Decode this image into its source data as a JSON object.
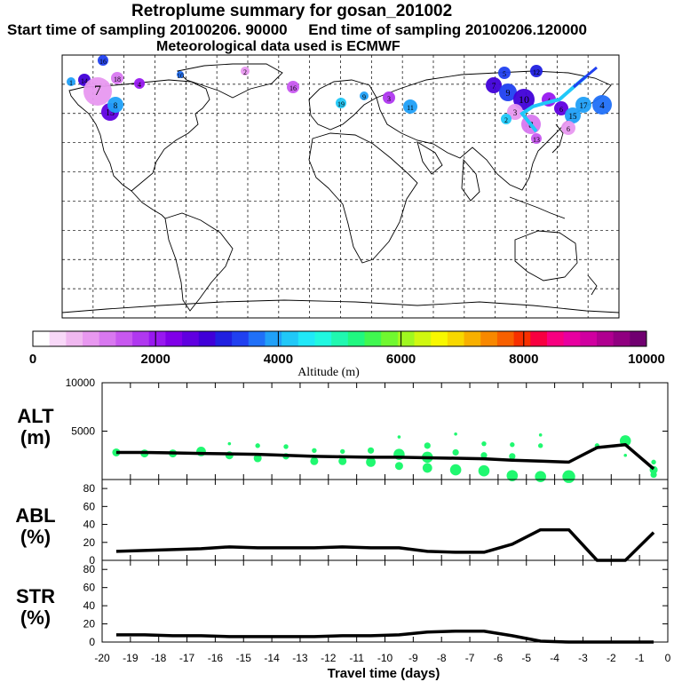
{
  "header": {
    "title": "Retroplume summary for gosan_201002",
    "sampling_line": "Start time of sampling 20100206. 90000     End time of sampling 20100206.120000",
    "met_line": "Meteorological data used is ECMWF"
  },
  "colorbar": {
    "title": "Altitude (m)",
    "tick_labels": [
      "0",
      "2000",
      "4000",
      "6000",
      "8000",
      "10000"
    ],
    "colors": [
      "#ffffff",
      "#f8d8f8",
      "#f0b8f0",
      "#e898f0",
      "#d878f0",
      "#c858f0",
      "#b038f0",
      "#9818f0",
      "#8000e8",
      "#6000e0",
      "#4000d8",
      "#2020e0",
      "#2040f0",
      "#2070f8",
      "#20a0f8",
      "#20c8f8",
      "#20e8f8",
      "#20f8e0",
      "#20f8b0",
      "#20f880",
      "#40f850",
      "#70f830",
      "#a0f820",
      "#d0f810",
      "#f8f800",
      "#f8d800",
      "#f8b000",
      "#f88800",
      "#f86000",
      "#f83000",
      "#f80040",
      "#f80080",
      "#e800a0",
      "#d000a0",
      "#b00090",
      "#900080",
      "#700070"
    ]
  },
  "chart_data": [
    {
      "type": "line",
      "panel": "ALT",
      "ylabel": "ALT\n(m)",
      "ylabel_lines": [
        "ALT",
        "(m)"
      ],
      "ylim": [
        0,
        10000
      ],
      "yticks": [
        5000,
        10000
      ],
      "ytick_labels": [
        "5000",
        "10000"
      ],
      "xlim": [
        -20,
        0
      ],
      "x": [
        -19.5,
        -18.5,
        -17.5,
        -16.5,
        -15.5,
        -14.5,
        -13.5,
        -12.5,
        -11.5,
        -10.5,
        -9.5,
        -8.5,
        -7.5,
        -6.5,
        -5.5,
        -4.5,
        -3.5,
        -2.5,
        -1.5,
        -0.5
      ],
      "values": [
        2800,
        2800,
        2750,
        2700,
        2650,
        2600,
        2500,
        2400,
        2350,
        2300,
        2300,
        2250,
        2200,
        2150,
        2000,
        1900,
        1800,
        3300,
        3600,
        1100
      ],
      "scatter": [
        {
          "x": -19.5,
          "y": 2800,
          "s": 5
        },
        {
          "x": -18.5,
          "y": 2700,
          "s": 5
        },
        {
          "x": -17.5,
          "y": 2700,
          "s": 5
        },
        {
          "x": -16.5,
          "y": 2900,
          "s": 6
        },
        {
          "x": -15.5,
          "y": 3700,
          "s": 2
        },
        {
          "x": -15.5,
          "y": 2500,
          "s": 5
        },
        {
          "x": -14.5,
          "y": 3500,
          "s": 3
        },
        {
          "x": -14.5,
          "y": 2200,
          "s": 5
        },
        {
          "x": -13.5,
          "y": 3400,
          "s": 3
        },
        {
          "x": -13.5,
          "y": 2400,
          "s": 4
        },
        {
          "x": -12.5,
          "y": 3000,
          "s": 3
        },
        {
          "x": -12.5,
          "y": 1900,
          "s": 5
        },
        {
          "x": -11.5,
          "y": 2900,
          "s": 3
        },
        {
          "x": -11.5,
          "y": 1900,
          "s": 5
        },
        {
          "x": -10.5,
          "y": 3000,
          "s": 4
        },
        {
          "x": -10.5,
          "y": 1800,
          "s": 6
        },
        {
          "x": -9.5,
          "y": 4400,
          "s": 2
        },
        {
          "x": -9.5,
          "y": 2600,
          "s": 7
        },
        {
          "x": -9.5,
          "y": 1400,
          "s": 5
        },
        {
          "x": -8.5,
          "y": 3500,
          "s": 4
        },
        {
          "x": -8.5,
          "y": 2300,
          "s": 7
        },
        {
          "x": -8.5,
          "y": 1200,
          "s": 6
        },
        {
          "x": -7.5,
          "y": 4700,
          "s": 2
        },
        {
          "x": -7.5,
          "y": 2800,
          "s": 4
        },
        {
          "x": -7.5,
          "y": 1000,
          "s": 7
        },
        {
          "x": -6.5,
          "y": 3700,
          "s": 3
        },
        {
          "x": -6.5,
          "y": 2500,
          "s": 4
        },
        {
          "x": -6.5,
          "y": 900,
          "s": 7
        },
        {
          "x": -5.5,
          "y": 3600,
          "s": 3
        },
        {
          "x": -5.5,
          "y": 2400,
          "s": 4
        },
        {
          "x": -5.5,
          "y": 400,
          "s": 7
        },
        {
          "x": -4.5,
          "y": 4600,
          "s": 2
        },
        {
          "x": -4.5,
          "y": 3500,
          "s": 3
        },
        {
          "x": -4.5,
          "y": 300,
          "s": 7
        },
        {
          "x": -3.5,
          "y": 300,
          "s": 8
        },
        {
          "x": -2.5,
          "y": 3500,
          "s": 3
        },
        {
          "x": -1.5,
          "y": 4000,
          "s": 7
        },
        {
          "x": -1.5,
          "y": 2500,
          "s": 2
        },
        {
          "x": -0.5,
          "y": 1000,
          "s": 5
        },
        {
          "x": -0.5,
          "y": 1800,
          "s": 3
        },
        {
          "x": -0.5,
          "y": 500,
          "s": 4
        }
      ]
    },
    {
      "type": "line",
      "panel": "ABL",
      "ylabel_lines": [
        "ABL",
        "(%)"
      ],
      "ylim": [
        0,
        90
      ],
      "yticks": [
        0,
        20,
        40,
        60,
        80
      ],
      "ytick_labels": [
        "0",
        "20",
        "40",
        "60",
        "80"
      ],
      "xlim": [
        -20,
        0
      ],
      "x": [
        -19.5,
        -18.5,
        -17.5,
        -16.5,
        -15.5,
        -14.5,
        -13.5,
        -12.5,
        -11.5,
        -10.5,
        -9.5,
        -8.5,
        -7.5,
        -6.5,
        -5.5,
        -4.5,
        -3.5,
        -2.5,
        -1.5,
        -0.5
      ],
      "values": [
        10,
        11,
        12,
        13,
        15,
        14,
        14,
        14,
        15,
        14,
        14,
        10,
        9,
        9,
        18,
        34,
        34,
        0,
        0,
        31
      ]
    },
    {
      "type": "line",
      "panel": "STR",
      "ylabel_lines": [
        "STR",
        "(%)"
      ],
      "ylim": [
        0,
        90
      ],
      "yticks": [
        0,
        20,
        40,
        60,
        80
      ],
      "ytick_labels": [
        "0",
        "20",
        "40",
        "60",
        "80"
      ],
      "xlim": [
        -20,
        0
      ],
      "x": [
        -19.5,
        -18.5,
        -17.5,
        -16.5,
        -15.5,
        -14.5,
        -13.5,
        -12.5,
        -11.5,
        -10.5,
        -9.5,
        -8.5,
        -7.5,
        -6.5,
        -5.5,
        -4.5,
        -3.5,
        -2.5,
        -1.5,
        -0.5
      ],
      "values": [
        8,
        8,
        7,
        7,
        6,
        6,
        6,
        6,
        7,
        7,
        8,
        11,
        12,
        12,
        7,
        1,
        0,
        0,
        0,
        0
      ],
      "xtick_labels": [
        "-20",
        "-19",
        "-18",
        "-17",
        "-16",
        "-15",
        "-14",
        "-13",
        "-12",
        "-11",
        "-10",
        "-9",
        "-8",
        "-7",
        "-6",
        "-5",
        "-4",
        "-3",
        "-2",
        "-1",
        "0"
      ],
      "xlabel": "Travel time (days)"
    }
  ],
  "map": {
    "plume_labels": [
      "1",
      "2",
      "3",
      "4",
      "5",
      "6",
      "7",
      "8",
      "9",
      "10",
      "11",
      "12",
      "13",
      "14",
      "15",
      "16",
      "17",
      "18",
      "19",
      "20"
    ],
    "clusters": [
      {
        "label": "16",
        "color": "#2040f0"
      },
      {
        "label": "14",
        "color": "#4000d8"
      },
      {
        "label": "20",
        "color": "#e898f0"
      },
      {
        "label": "7",
        "color": "#d878f0"
      },
      {
        "label": "18",
        "color": "#9818f0"
      },
      {
        "label": "13",
        "color": "#6000e0"
      },
      {
        "label": "11",
        "color": "#20a0f8"
      },
      {
        "label": "9",
        "color": "#20a0f8"
      },
      {
        "label": "10",
        "color": "#2070f8"
      },
      {
        "label": "4",
        "color": "#e898f0"
      },
      {
        "label": "5",
        "color": "#c858f0"
      },
      {
        "label": "2",
        "color": "#20c8f8"
      },
      {
        "label": "3",
        "color": "#20a0f8"
      },
      {
        "label": "6",
        "color": "#b038f0"
      },
      {
        "label": "8",
        "color": "#20a0f8"
      },
      {
        "label": "12",
        "color": "#2040f0"
      },
      {
        "label": "15",
        "color": "#2020e0"
      },
      {
        "label": "19",
        "color": "#4000d8"
      }
    ]
  }
}
